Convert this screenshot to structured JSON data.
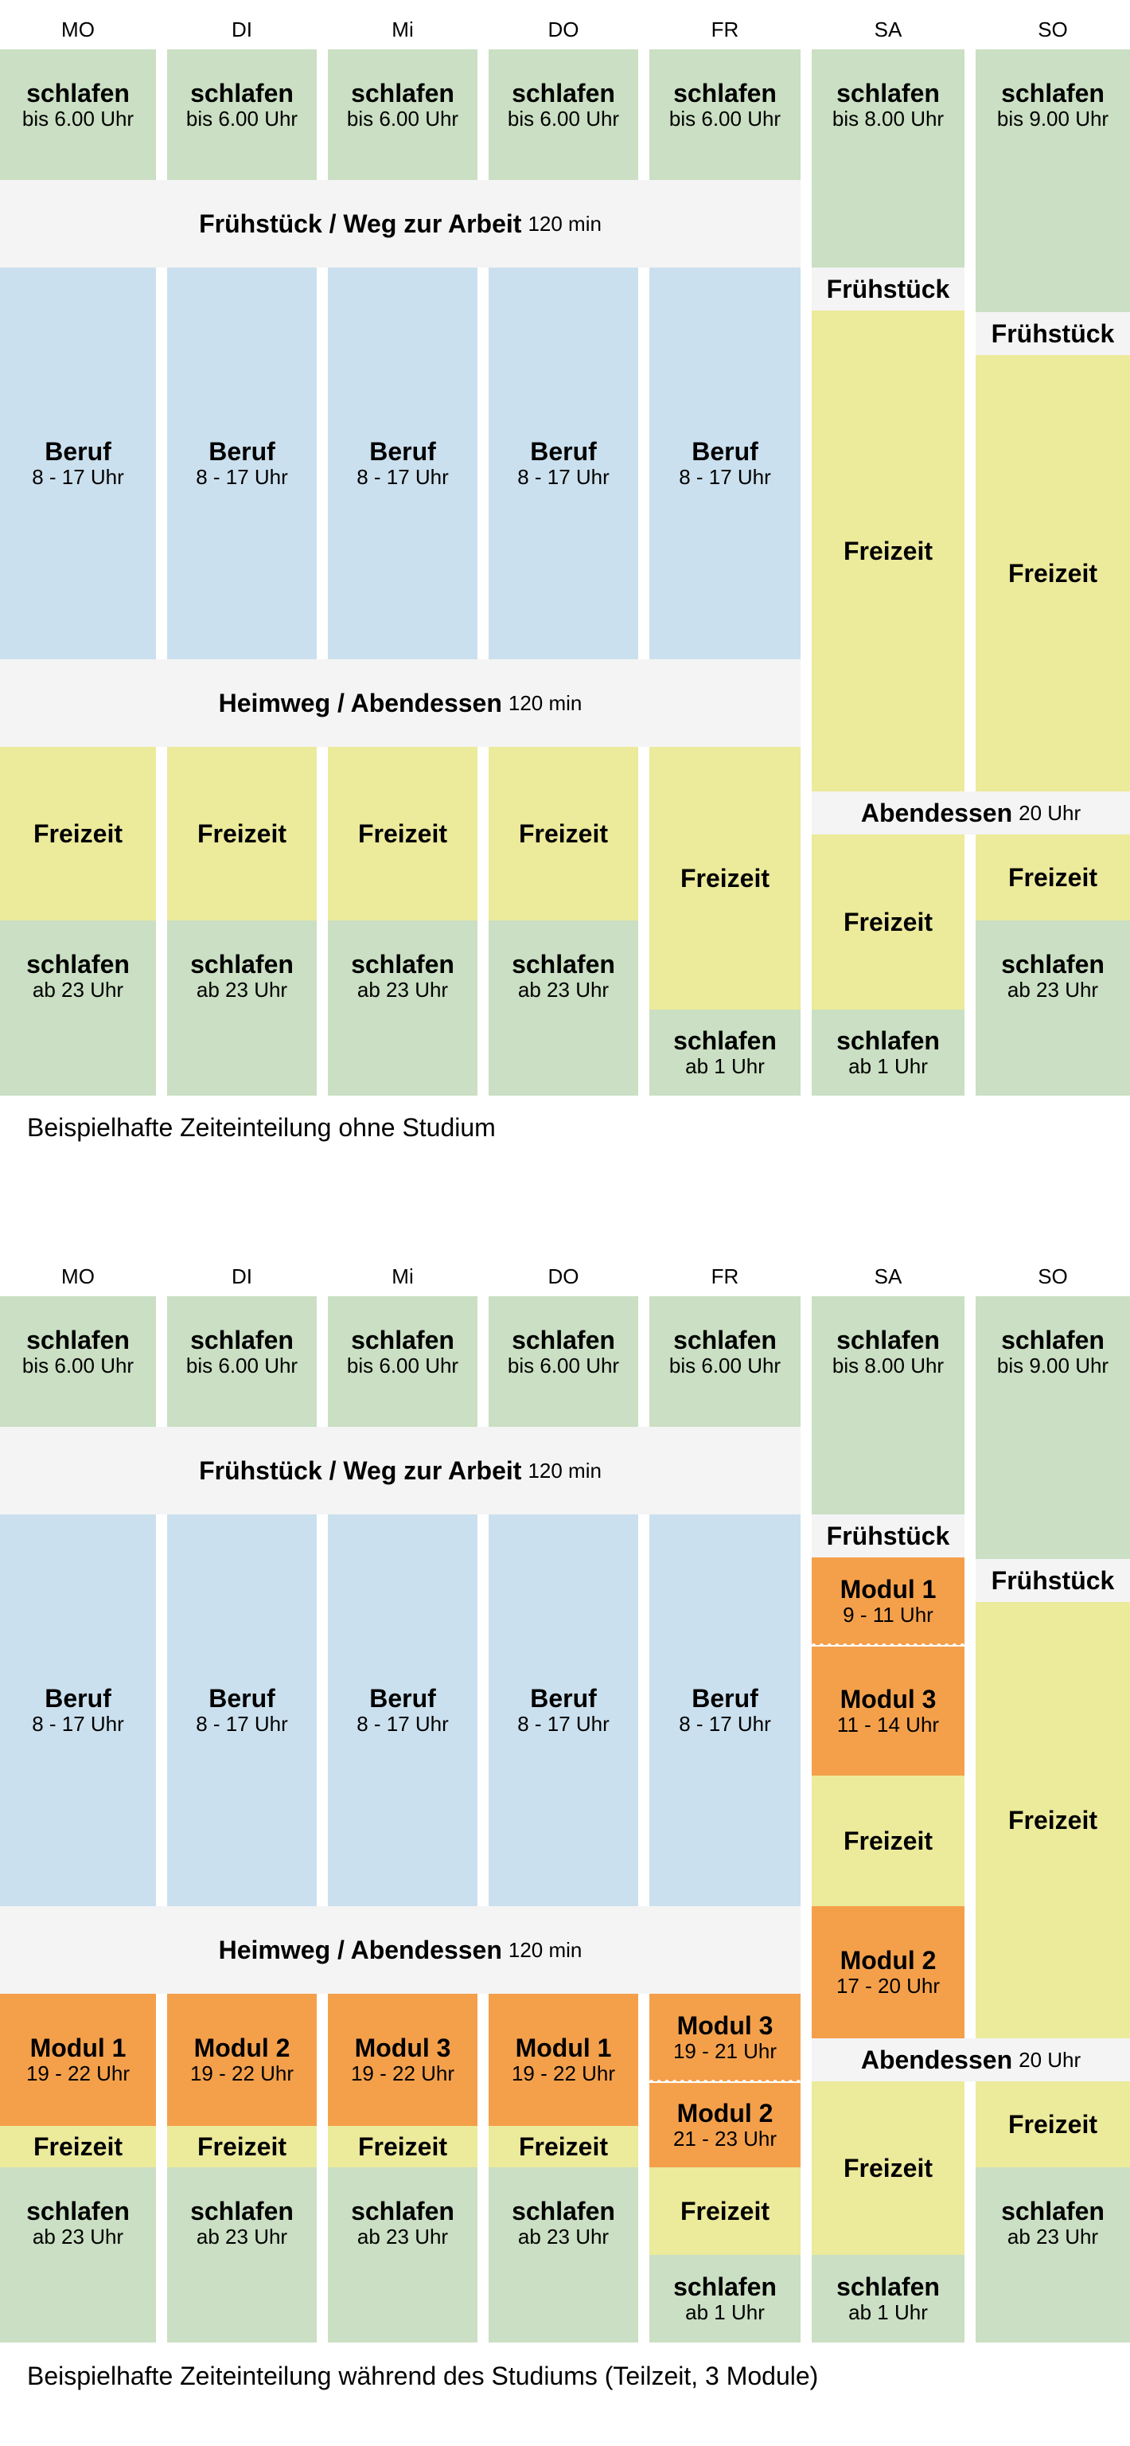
{
  "days": [
    "MO",
    "DI",
    "Mi",
    "DO",
    "FR",
    "SA",
    "SO"
  ],
  "labels": {
    "sleep": "schlafen",
    "work": "Beruf",
    "free": "Freizeit",
    "breakfast": "Frühstück",
    "breakfast_commute": "Frühstück / Weg zur Arbeit",
    "commute_dinner": "Heimweg / Abendessen",
    "dinner": "Abendessen",
    "module1": "Modul 1",
    "module2": "Modul 2",
    "module3": "Modul 3"
  },
  "times": {
    "until6": "bis 6.00 Uhr",
    "until8": "bis 8.00 Uhr",
    "until9": "bis 9.00 Uhr",
    "work": "8 - 17 Uhr",
    "min120": "120 min",
    "from23": "ab 23 Uhr",
    "from1": "ab 1 Uhr",
    "at20": "20 Uhr",
    "m_19_22": "19 - 22 Uhr",
    "m_19_21": "19 - 21 Uhr",
    "m_21_23": "21 - 23 Uhr",
    "m_9_11": "9 - 11 Uhr",
    "m_11_14": "11 - 14 Uhr",
    "m_17_20": "17 - 20 Uhr"
  },
  "captions": {
    "without_study": "Beispielhafte Zeiteinteilung ohne Studium",
    "during_study": "Beispielhafte Zeiteinteilung während des Studiums (Teilzeit, 3 Module)"
  },
  "colors": {
    "sleep": "#cadfc3",
    "work": "#cbe0ee",
    "free": "#ecea9b",
    "meal": "#f4f4f4",
    "module": "#f4a04b"
  }
}
